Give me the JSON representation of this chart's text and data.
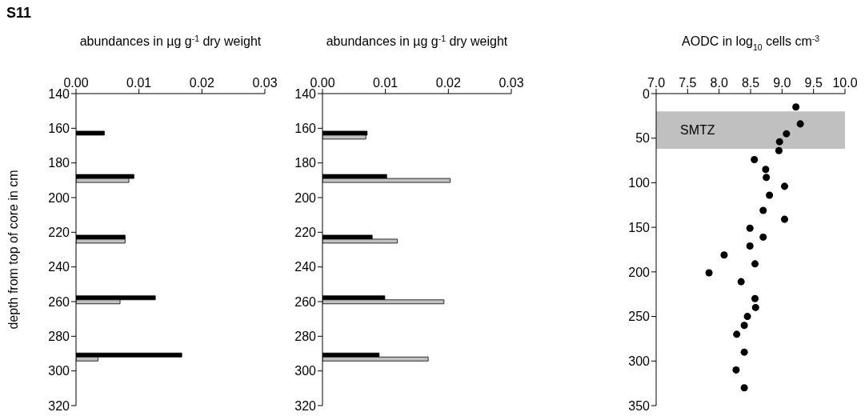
{
  "chart_data": [
    {
      "type": "bar",
      "orientation": "horizontal",
      "title": "S11",
      "xlabel": "abundances in µg g$^{-1}$ dry weight",
      "ylabel": "depth from top of core in cm",
      "x": [
        164,
        189,
        224,
        259,
        292
      ],
      "series": [
        {
          "color": "#000000",
          "values": [
            0.0045,
            0.0092,
            0.0078,
            0.0126,
            0.0168
          ]
        },
        {
          "color": "#c0c0c0",
          "values": [
            null,
            0.0084,
            0.0078,
            0.007,
            0.0035
          ]
        }
      ],
      "xlim": [
        0,
        0.03
      ],
      "xticks": [
        {
          "value": 0,
          "label": "0.00"
        },
        {
          "value": 0.01,
          "label": "0.01"
        },
        {
          "value": 0.02,
          "label": "0.02"
        },
        {
          "value": 0.03,
          "label": "0.03"
        }
      ],
      "ylim": [
        320,
        140
      ],
      "yticks": [
        140,
        160,
        180,
        200,
        220,
        240,
        260,
        280,
        300,
        320
      ]
    },
    {
      "type": "bar",
      "orientation": "horizontal",
      "xlabel": "abundances in µg g$^{-1}$ dry weight",
      "x": [
        164,
        189,
        224,
        259,
        292
      ],
      "series": [
        {
          "color": "#000000",
          "values": [
            0.0071,
            0.0102,
            0.0079,
            0.0099,
            0.009
          ]
        },
        {
          "color": "#c0c0c0",
          "values": [
            0.0069,
            0.0203,
            0.0119,
            0.0193,
            0.0168
          ]
        }
      ],
      "xlim": [
        0,
        0.03
      ],
      "xticks": [
        {
          "value": 0,
          "label": "0.00"
        },
        {
          "value": 0.01,
          "label": "0.01"
        },
        {
          "value": 0.02,
          "label": "0.02"
        },
        {
          "value": 0.03,
          "label": "0.03"
        }
      ],
      "ylim": [
        320,
        140
      ],
      "yticks": [
        140,
        160,
        180,
        200,
        220,
        240,
        260,
        280,
        300,
        320
      ]
    },
    {
      "type": "scatter",
      "xlabel": "AODC in log$_{10}$ cells cm$^{-3}$",
      "marker": "circle",
      "series": [
        {
          "color": "#000000",
          "x": [
            9.22,
            9.29,
            9.07,
            8.96,
            8.95,
            8.56,
            8.74,
            8.75,
            9.04,
            8.8,
            8.7,
            9.04,
            8.49,
            8.7,
            8.49,
            8.08,
            8.57,
            7.84,
            8.35,
            8.57,
            8.58,
            8.45,
            8.4,
            8.28,
            8.4,
            8.27,
            8.4
          ],
          "values": [
            15,
            34,
            45,
            54,
            64,
            74,
            85,
            94,
            104,
            114,
            131,
            141,
            151,
            161,
            171,
            181,
            191,
            201,
            211,
            230,
            240,
            250,
            260,
            270,
            290,
            310,
            330
          ]
        }
      ],
      "bands": [
        {
          "axis": "y",
          "from": 20,
          "to": 62,
          "label": "SMTZ",
          "color": "#c0c0c0"
        }
      ],
      "xlim": [
        7,
        10
      ],
      "xticks": [
        {
          "value": 7,
          "label": "7.0"
        },
        {
          "value": 7.5,
          "label": "7.5"
        },
        {
          "value": 8,
          "label": "8.0"
        },
        {
          "value": 8.5,
          "label": "8.5"
        },
        {
          "value": 9,
          "label": "9.0"
        },
        {
          "value": 9.5,
          "label": "9.5"
        },
        {
          "value": 10,
          "label": "10.0"
        }
      ],
      "ylim": [
        350,
        0
      ],
      "yticks": [
        0,
        50,
        100,
        150,
        200,
        250,
        300,
        350
      ]
    }
  ]
}
